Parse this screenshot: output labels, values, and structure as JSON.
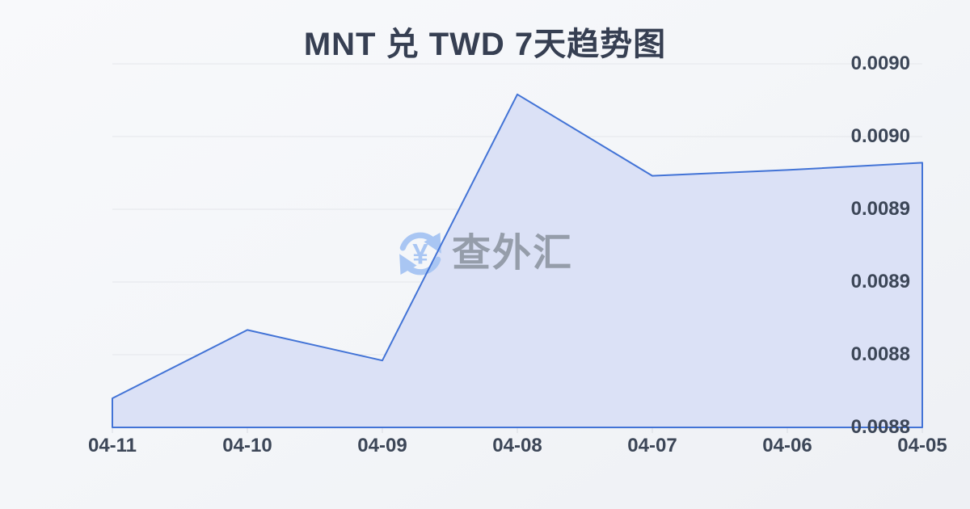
{
  "page": {
    "title": "MNT 兑 TWD 7天趋势图"
  },
  "watermark": {
    "icon": "currency-exchange-icon",
    "icon_symbol": "¥",
    "text": "查外汇"
  },
  "colors": {
    "line": "#4273d6",
    "fill": "#dbe1f6",
    "grid": "#e4e6ea",
    "tick": "#d9dce2",
    "axis_text": "#3c4657",
    "title_text": "#363f52",
    "watermark_text": "#959daa",
    "watermark_icon": "#a9c6f3"
  },
  "chart_data": {
    "type": "area",
    "title": "MNT 兑 TWD 7天趋势图",
    "categories": [
      "04-11",
      "04-10",
      "04-09",
      "04-08",
      "04-07",
      "04-06",
      "04-05"
    ],
    "series": [
      {
        "name": "MNT/TWD",
        "values": [
          0.00877,
          0.008817,
          0.008796,
          0.008979,
          0.008923,
          0.008927,
          0.008932
        ]
      }
    ],
    "xlabel": "",
    "ylabel": "",
    "ylim": [
      0.00875,
      0.009
    ],
    "y_tick_values": [
      0.009,
      0.00895,
      0.0089,
      0.00885,
      0.0088,
      0.00875
    ],
    "y_tick_labels": [
      "0.0090",
      "0.0090",
      "0.0089",
      "0.0089",
      "0.0088",
      "0.0088"
    ],
    "grid": true,
    "legend": false
  }
}
